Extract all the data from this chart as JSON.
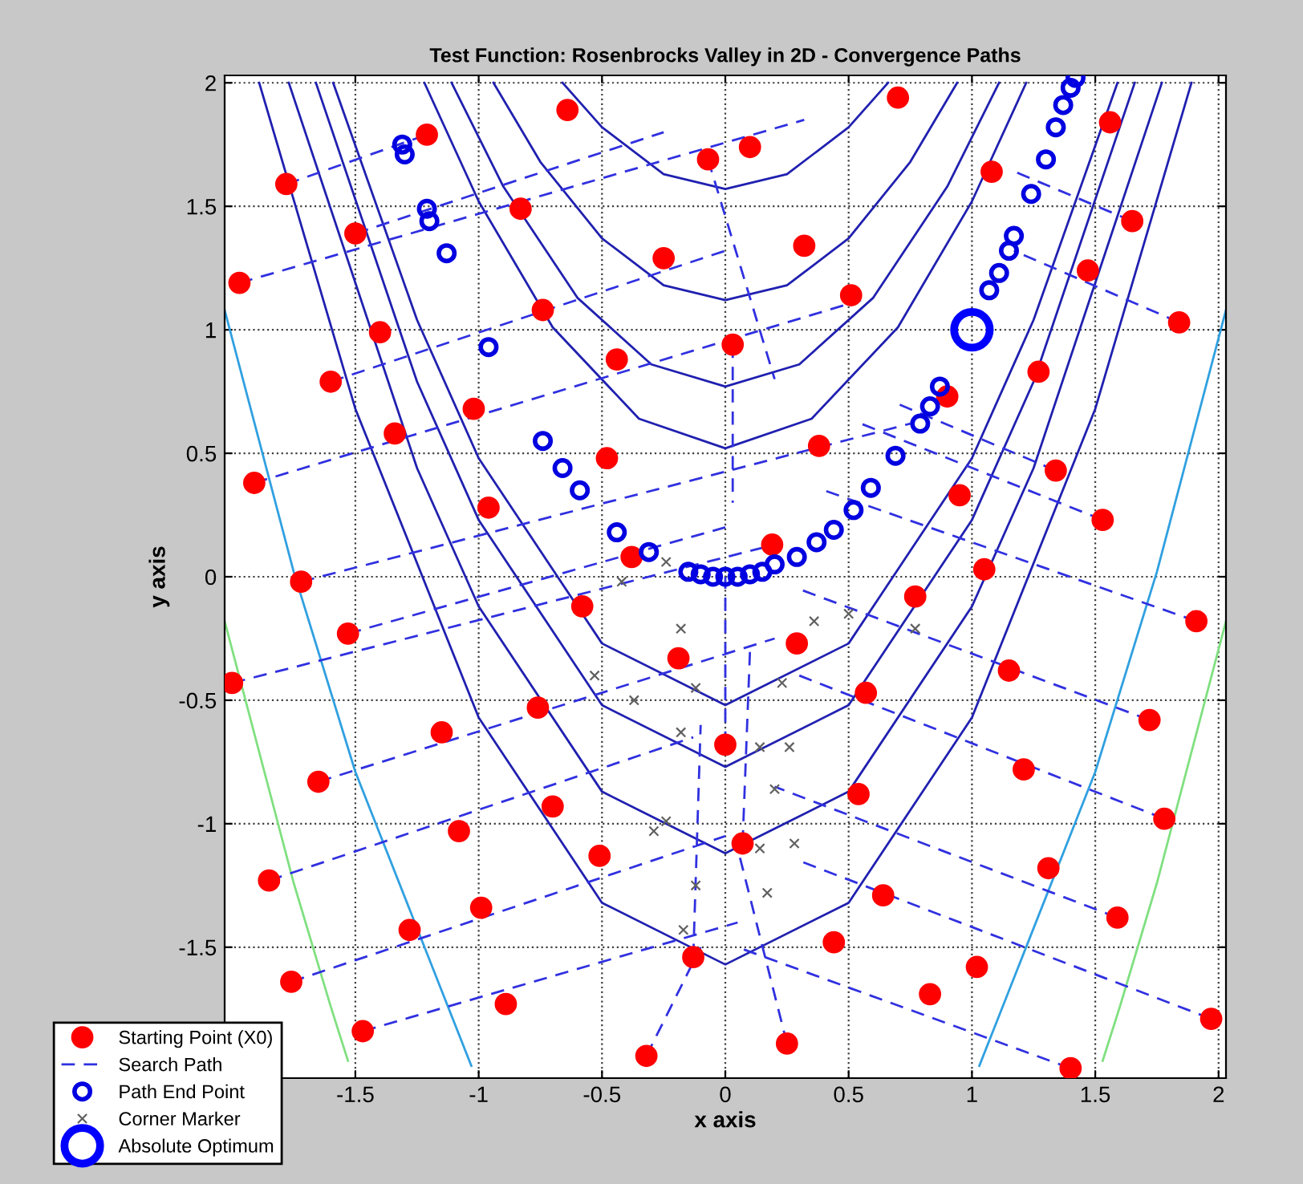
{
  "chart_data": {
    "type": "scatter",
    "title": "Test Function: Rosenbrocks Valley in 2D - Convergence Paths",
    "xlabel": "x axis",
    "ylabel": "y axis",
    "xlim": [
      -2.03,
      2.03
    ],
    "ylim": [
      -2.03,
      2.03
    ],
    "xticks": [
      -1.5,
      -1,
      -0.5,
      0,
      0.5,
      1,
      1.5,
      2
    ],
    "yticks": [
      -1.5,
      -1,
      -0.5,
      0,
      0.5,
      1,
      1.5,
      2
    ],
    "grid": true,
    "legend": "bottom left",
    "series": [
      {
        "type": "line",
        "color": "#2020b0",
        "marker": "none",
        "line_style": "solid",
        "x": [
          -0.66,
          -0.5,
          -0.25,
          0,
          0.25,
          0.5,
          0.66
        ],
        "values": [
          2.0,
          1.82,
          1.63,
          1.57,
          1.63,
          1.82,
          2.0
        ]
      },
      {
        "type": "line",
        "color": "#2020b0",
        "marker": "none",
        "line_style": "solid",
        "x": [
          -0.94,
          -0.75,
          -0.5,
          -0.25,
          0,
          0.25,
          0.5,
          0.75,
          0.94
        ],
        "values": [
          2.0,
          1.68,
          1.37,
          1.18,
          1.12,
          1.18,
          1.37,
          1.68,
          2.0
        ]
      },
      {
        "type": "line",
        "color": "#2020b0",
        "marker": "none",
        "line_style": "solid",
        "x": [
          -1.11,
          -0.9,
          -0.6,
          -0.3,
          0,
          0.3,
          0.6,
          0.9,
          1.11
        ],
        "values": [
          2.0,
          1.58,
          1.13,
          0.86,
          0.77,
          0.86,
          1.13,
          1.58,
          2.0
        ]
      },
      {
        "type": "line",
        "color": "#2020b0",
        "marker": "none",
        "line_style": "solid",
        "x": [
          -1.22,
          -1.0,
          -0.7,
          -0.35,
          0,
          0.35,
          0.7,
          1.0,
          1.22
        ],
        "values": [
          2.0,
          1.52,
          1.01,
          0.64,
          0.52,
          0.64,
          1.01,
          1.52,
          2.0
        ]
      },
      {
        "type": "line",
        "color": "#2020b0",
        "marker": "none",
        "line_style": "solid",
        "x": [
          -1.59,
          -1.25,
          -1,
          -0.5,
          0,
          0.5,
          1,
          1.25,
          1.59
        ],
        "values": [
          2.0,
          1.04,
          0.48,
          -0.27,
          -0.52,
          -0.27,
          0.48,
          1.04,
          2.0
        ]
      },
      {
        "type": "line",
        "color": "#2020b0",
        "marker": "none",
        "line_style": "solid",
        "x": [
          -1.66,
          -1.25,
          -1,
          -0.5,
          0,
          0.5,
          1,
          1.25,
          1.66
        ],
        "values": [
          2.0,
          0.79,
          0.23,
          -0.52,
          -0.77,
          -0.52,
          0.23,
          0.79,
          2.0
        ]
      },
      {
        "type": "line",
        "color": "#2020b0",
        "marker": "none",
        "line_style": "solid",
        "x": [
          -1.77,
          -1.25,
          -1,
          -0.5,
          0,
          0.5,
          1,
          1.25,
          1.77
        ],
        "values": [
          2.0,
          0.44,
          -0.12,
          -0.87,
          -1.12,
          -0.87,
          -0.12,
          0.44,
          2.0
        ]
      },
      {
        "type": "line",
        "color": "#2020b0",
        "marker": "none",
        "line_style": "solid",
        "x": [
          -1.89,
          -1.5,
          -1,
          -0.5,
          0,
          0.5,
          1,
          1.5,
          1.89
        ],
        "values": [
          2.0,
          0.68,
          -0.57,
          -1.32,
          -1.57,
          -1.32,
          -0.57,
          0.68,
          2.0
        ]
      },
      {
        "type": "line",
        "color": "#30a0e0",
        "marker": "none",
        "line_style": "solid",
        "x": [
          -2.03,
          -1.75,
          -1.5,
          -1.03,
          null,
          1.03,
          1.5,
          1.75,
          2.03
        ],
        "values": [
          1.08,
          0.02,
          -0.79,
          -1.98,
          null,
          -1.98,
          -0.79,
          0.02,
          1.08
        ]
      },
      {
        "type": "line",
        "color": "#80e080",
        "marker": "none",
        "line_style": "solid",
        "x": [
          -2.03,
          -1.75,
          -1.6,
          -1.53,
          null,
          1.53,
          1.6,
          1.75,
          2.03
        ],
        "values": [
          -0.18,
          -1.24,
          -1.74,
          -1.96,
          null,
          -1.96,
          -1.74,
          -1.24,
          -0.18
        ]
      },
      {
        "name": "Search Path",
        "type": "line",
        "color": "#3030e0",
        "marker": "none",
        "line_style": "dashed",
        "x": [
          -1.97,
          0.32,
          null,
          -1.91,
          0.55,
          null,
          -1.72,
          0.75,
          null,
          -2.0,
          0.2,
          null,
          -1.85,
          -0.13,
          null,
          -1.76,
          0.0,
          null,
          -1.47,
          0.05,
          null,
          -1.6,
          0.03,
          null,
          -1.5,
          -0.25,
          null,
          -1.78,
          -1.21,
          null,
          -1.65,
          0.2,
          null,
          -1.53,
          0.0,
          null,
          1.91,
          0.4,
          null,
          1.84,
          1.17,
          null,
          1.72,
          0.3,
          null,
          1.78,
          0.3,
          null,
          1.97,
          0.3,
          null,
          1.59,
          0.2,
          null,
          1.4,
          0.05,
          null,
          1.53,
          0.55,
          null,
          1.65,
          1.15,
          null,
          1.34,
          0.7,
          null,
          0.25,
          0.05,
          null,
          -0.32,
          -0.1,
          null,
          0.0,
          0.0,
          null,
          0.07,
          0.1,
          null,
          -0.13,
          -0.1,
          null,
          0.03,
          0.03,
          null,
          -0.07,
          0.2
        ],
        "values": [
          1.19,
          1.85,
          null,
          0.38,
          1.12,
          null,
          -0.02,
          0.62,
          null,
          -0.43,
          0.13,
          null,
          -1.23,
          -0.65,
          null,
          -1.64,
          -1.05,
          null,
          -1.84,
          -1.4,
          null,
          0.79,
          1.33,
          null,
          1.39,
          1.8,
          null,
          1.59,
          1.79,
          null,
          -0.83,
          -0.25,
          null,
          -0.23,
          0.2,
          null,
          -0.18,
          0.35,
          null,
          1.03,
          1.32,
          null,
          -0.58,
          -0.05,
          null,
          -0.98,
          -0.4,
          null,
          -1.79,
          -1.15,
          null,
          -1.38,
          -0.85,
          null,
          -1.99,
          -1.5,
          null,
          0.23,
          0.62,
          null,
          1.44,
          1.65,
          null,
          0.43,
          0.7,
          null,
          -1.89,
          -1.1,
          null,
          -1.94,
          -1.5,
          null,
          -0.68,
          0.0,
          null,
          -1.08,
          -0.3,
          null,
          -1.54,
          -0.6,
          null,
          0.94,
          0.3,
          null,
          1.69,
          0.8
        ]
      },
      {
        "name": "Starting Point (X0)",
        "color": "#ff0000",
        "marker": "circle",
        "x": [
          -0.64,
          -1.21,
          -1.78,
          -0.83,
          -1.5,
          -1.97,
          -0.07,
          0.1,
          -0.25,
          -0.74,
          -1.4,
          0.03,
          -0.44,
          -1.6,
          -1.02,
          -1.34,
          -0.48,
          -1.91,
          -0.96,
          -0.38,
          -1.72,
          0.7,
          1.56,
          1.08,
          1.65,
          0.32,
          1.47,
          0.51,
          1.84,
          1.27,
          0.9,
          0.38,
          1.34,
          0.95,
          1.53,
          0.19,
          1.05,
          -0.58,
          -1.53,
          -0.19,
          -2.0,
          -0.76,
          -1.15,
          0.0,
          -1.65,
          -0.7,
          -1.08,
          0.07,
          -0.51,
          -1.85,
          -0.99,
          -1.28,
          -0.13,
          -1.76,
          -0.89,
          -1.47,
          -0.32,
          0.77,
          1.91,
          0.29,
          1.15,
          0.57,
          1.72,
          1.21,
          0.54,
          1.78,
          1.31,
          0.64,
          1.59,
          0.44,
          1.02,
          0.83,
          1.97,
          0.25,
          1.4
        ],
        "values": [
          1.89,
          1.79,
          1.59,
          1.49,
          1.39,
          1.19,
          1.69,
          1.74,
          1.29,
          1.08,
          0.99,
          0.94,
          0.88,
          0.79,
          0.68,
          0.58,
          0.48,
          0.38,
          0.28,
          0.08,
          -0.02,
          1.94,
          1.84,
          1.64,
          1.44,
          1.34,
          1.24,
          1.14,
          1.03,
          0.83,
          0.73,
          0.53,
          0.43,
          0.33,
          0.23,
          0.13,
          0.03,
          -0.12,
          -0.23,
          -0.33,
          -0.43,
          -0.53,
          -0.63,
          -0.68,
          -0.83,
          -0.93,
          -1.03,
          -1.08,
          -1.13,
          -1.23,
          -1.34,
          -1.43,
          -1.54,
          -1.64,
          -1.73,
          -1.84,
          -1.94,
          -0.08,
          -0.18,
          -0.27,
          -0.38,
          -0.47,
          -0.58,
          -0.78,
          -0.88,
          -0.98,
          -1.18,
          -1.29,
          -1.38,
          -1.48,
          -1.58,
          -1.69,
          -1.79,
          -1.89,
          -1.99
        ]
      },
      {
        "name": "Path End Point",
        "color": "#0000e0",
        "marker": "circle",
        "x": [
          -1.31,
          -1.3,
          -1.21,
          -1.2,
          -1.13,
          -0.96,
          -0.74,
          -0.66,
          -0.59,
          -0.44,
          -0.31,
          -0.15,
          -0.1,
          -0.05,
          0.0,
          0.05,
          0.1,
          0.15,
          0.2,
          0.29,
          0.37,
          0.44,
          0.52,
          0.59,
          0.69,
          0.79,
          0.83,
          0.87,
          1.07,
          1.11,
          1.15,
          1.17,
          1.24,
          1.3,
          1.34,
          1.37,
          1.4,
          1.42
        ],
        "values": [
          1.75,
          1.71,
          1.49,
          1.44,
          1.31,
          0.93,
          0.55,
          0.44,
          0.35,
          0.18,
          0.1,
          0.02,
          0.01,
          0.0,
          0.0,
          0.0,
          0.01,
          0.02,
          0.05,
          0.08,
          0.14,
          0.19,
          0.27,
          0.36,
          0.49,
          0.62,
          0.69,
          0.77,
          1.16,
          1.23,
          1.32,
          1.38,
          1.55,
          1.69,
          1.82,
          1.91,
          1.98,
          2.02
        ]
      },
      {
        "name": "Corner Marker",
        "color": "#606060",
        "marker": "cross",
        "x": [
          -0.42,
          -0.53,
          -0.37,
          -0.18,
          -0.12,
          -0.24,
          -0.29,
          -0.12,
          -0.17,
          -0.18,
          0.36,
          0.5,
          0.77,
          0.23,
          0.14,
          0.26,
          0.2,
          0.28,
          0.14,
          0.17,
          -0.24
        ],
        "values": [
          -0.02,
          -0.4,
          -0.5,
          -0.63,
          -0.45,
          -0.99,
          -1.03,
          -1.25,
          -1.43,
          -0.21,
          -0.18,
          -0.15,
          -0.21,
          -0.43,
          -0.69,
          -0.69,
          -0.86,
          -1.08,
          -1.1,
          -1.28,
          0.06
        ]
      },
      {
        "name": "Absolute Optimum",
        "color": "#0000ff",
        "marker": "circle",
        "x": [
          1
        ],
        "values": [
          1
        ]
      }
    ]
  }
}
